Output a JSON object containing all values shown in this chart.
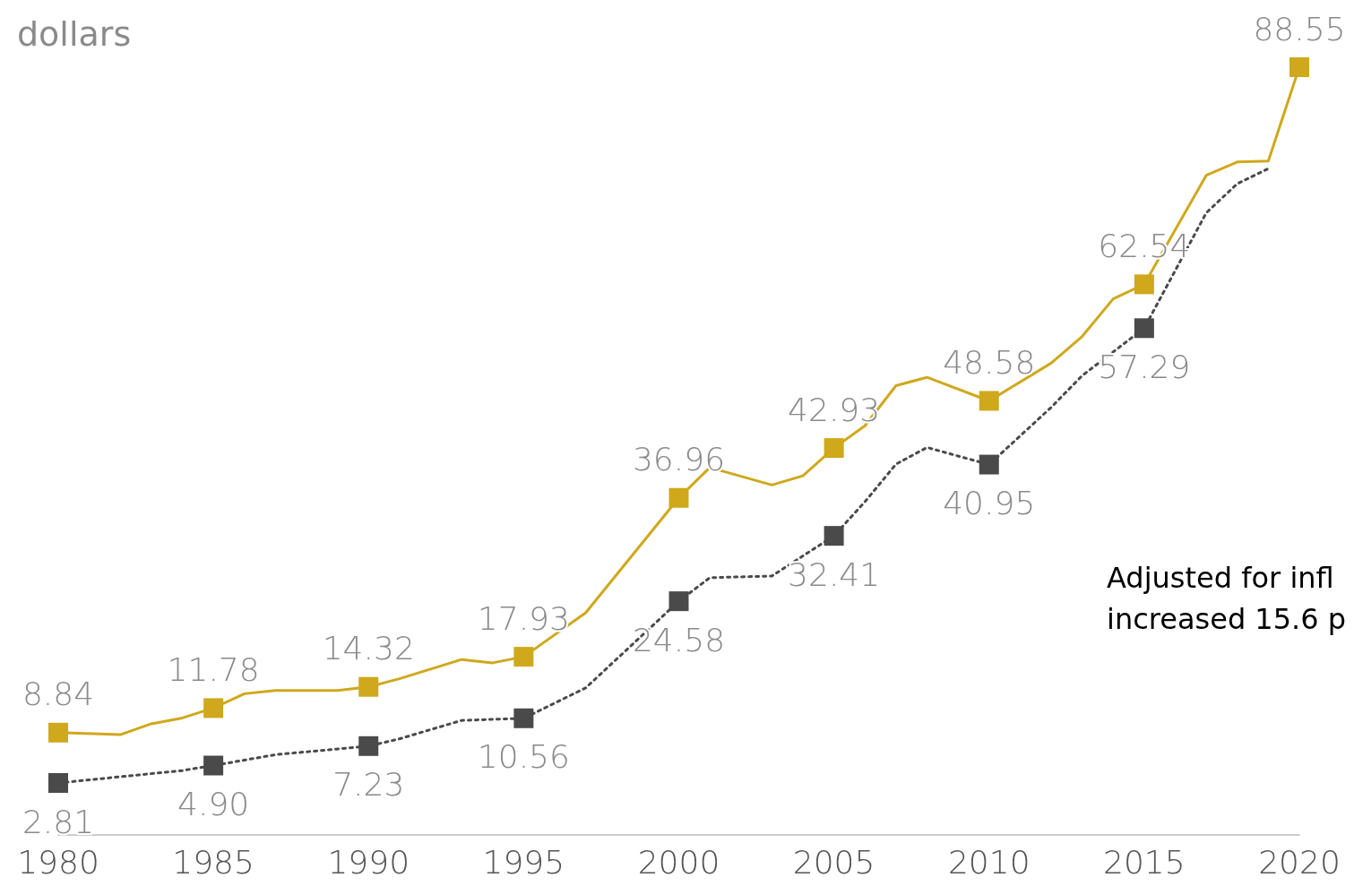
{
  "chart_data": {
    "type": "line",
    "title": "dollars",
    "xlim": [
      1980,
      2020
    ],
    "xticks": [
      1980,
      1985,
      1990,
      1995,
      2000,
      2005,
      2010,
      2015,
      2020
    ],
    "grid": false,
    "series": [
      {
        "color": "#cfa81c",
        "line_style": "solid",
        "x": [
          1980,
          1982,
          1983,
          1984,
          1985,
          1986,
          1987,
          1989,
          1990,
          1991,
          1993,
          1994,
          1995,
          1997,
          2000,
          2001,
          2003,
          2004,
          2005,
          2006,
          2007,
          2008,
          2010,
          2012,
          2013,
          2014,
          2015,
          2017,
          2018,
          2019,
          2020
        ],
        "values": [
          8.84,
          8.6,
          9.9,
          10.6,
          11.78,
          13.5,
          13.9,
          13.9,
          14.32,
          15.3,
          17.6,
          17.2,
          17.93,
          23.2,
          36.96,
          40.6,
          38.5,
          39.6,
          42.93,
          45.6,
          50.4,
          51.4,
          48.58,
          53.1,
          56.3,
          60.8,
          62.54,
          75.6,
          77.2,
          77.3,
          88.55
        ],
        "value_labels": [
          "8.84",
          null,
          null,
          null,
          "11.78",
          null,
          null,
          null,
          "14.32",
          null,
          null,
          null,
          "17.93",
          null,
          "36.96",
          null,
          null,
          null,
          "42.93",
          null,
          null,
          null,
          "48.58",
          null,
          null,
          null,
          "62.54",
          null,
          null,
          null,
          "88.55"
        ]
      },
      {
        "color": "#4a4a4a",
        "line_style": "dotted",
        "x": [
          1980,
          1984,
          1985,
          1987,
          1990,
          1991,
          1993,
          1995,
          1997,
          2000,
          2001,
          2003,
          2005,
          2006,
          2007,
          2008,
          2010,
          2012,
          2013,
          2015,
          2017,
          2018,
          2019
        ],
        "values": [
          2.81,
          4.3,
          4.9,
          6.2,
          7.23,
          8.1,
          10.3,
          10.56,
          14.2,
          24.58,
          27.4,
          27.6,
          32.41,
          36.5,
          41.0,
          43.0,
          40.95,
          47.8,
          51.6,
          57.29,
          71.1,
          74.6,
          76.4
        ],
        "value_labels": [
          "2.81",
          null,
          "4.90",
          null,
          "7.23",
          null,
          null,
          "10.56",
          null,
          "24.58",
          null,
          null,
          "32.41",
          null,
          null,
          null,
          "40.95",
          null,
          null,
          "57.29",
          null,
          null,
          null
        ]
      }
    ],
    "annotations": [
      "Adjusted for infl\nincreased 15.6 p"
    ]
  }
}
